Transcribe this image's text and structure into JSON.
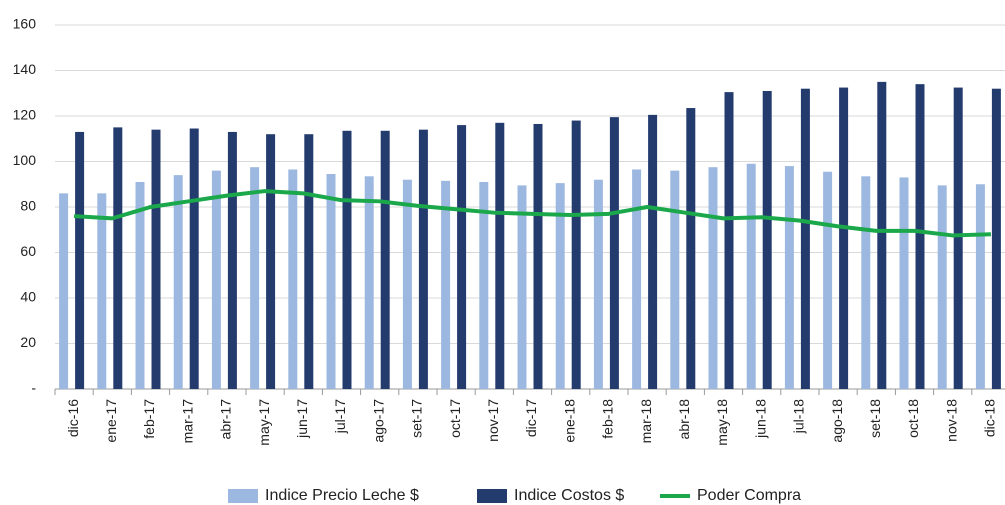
{
  "chart_data": {
    "type": "bar_line",
    "categories": [
      "dic-16",
      "ene-17",
      "feb-17",
      "mar-17",
      "abr-17",
      "may-17",
      "jun-17",
      "jul-17",
      "ago-17",
      "set-17",
      "oct-17",
      "nov-17",
      "dic-17",
      "ene-18",
      "feb-18",
      "mar-18",
      "abr-18",
      "may-18",
      "jun-18",
      "jul-18",
      "ago-18",
      "set-18",
      "oct-18",
      "nov-18",
      "dic-18"
    ],
    "series": [
      {
        "name": "Indice Precio Leche $",
        "type": "bar",
        "color": "#9db8e0",
        "values": [
          86,
          86,
          91,
          94,
          96,
          97.5,
          96.5,
          94.5,
          93.5,
          92,
          91.5,
          91,
          89.5,
          90.5,
          92,
          96.5,
          96,
          97.5,
          99,
          98,
          95.5,
          93.5,
          93,
          89.5,
          90
        ]
      },
      {
        "name": "Indice Costos $",
        "type": "bar",
        "color": "#243b6e",
        "values": [
          113,
          115,
          114,
          114.5,
          113,
          112,
          112,
          113.5,
          113.5,
          114,
          116,
          117,
          116.5,
          118,
          119.5,
          120.5,
          123.5,
          130.5,
          131,
          132,
          132.5,
          135,
          134,
          132.5,
          132
        ]
      },
      {
        "name": "Poder Compra",
        "type": "line",
        "color": "#1aa84b",
        "values": [
          76,
          75,
          80,
          82.5,
          85,
          87,
          86,
          83,
          82.5,
          80.5,
          79,
          77.5,
          77,
          76.5,
          77,
          80,
          77.5,
          75,
          75.5,
          74,
          71.5,
          69.5,
          69.5,
          67.5,
          68
        ]
      }
    ],
    "ylim": [
      0,
      160
    ],
    "yticks": [
      {
        "value": 0,
        "label": "-"
      },
      20,
      40,
      60,
      80,
      100,
      120,
      140,
      160
    ],
    "grid": true,
    "legend": "bottom"
  }
}
